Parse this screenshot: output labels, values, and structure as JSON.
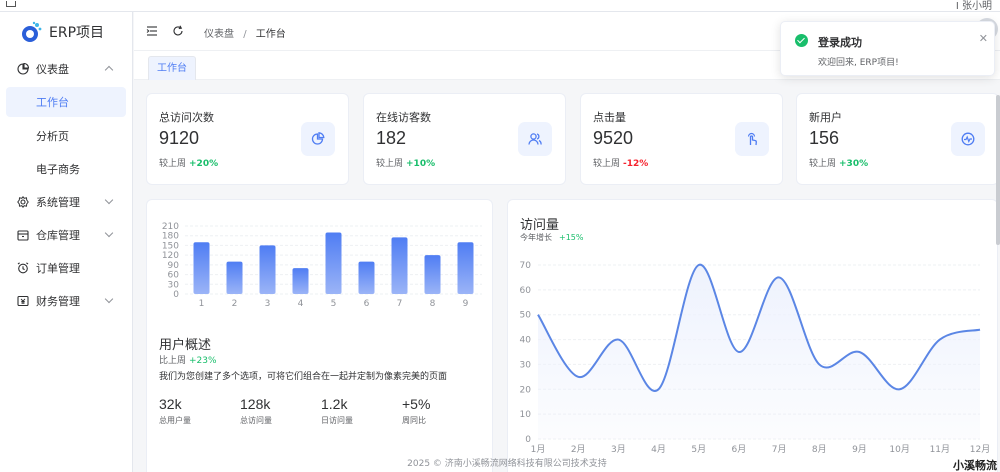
{
  "topbar": {
    "right_text": "Ⅰ 张小明"
  },
  "app": {
    "name": "ERP项目"
  },
  "sidebar": {
    "items": [
      {
        "label": "仪表盘",
        "icon": "dashboard-icon",
        "expanded": true,
        "children": [
          {
            "label": "工作台",
            "active": true
          },
          {
            "label": "分析页"
          },
          {
            "label": "电子商务"
          }
        ]
      },
      {
        "label": "系统管理",
        "icon": "gear-icon"
      },
      {
        "label": "仓库管理",
        "icon": "warehouse-icon"
      },
      {
        "label": "订单管理",
        "icon": "alarm-icon"
      },
      {
        "label": "财务管理",
        "icon": "finance-icon"
      }
    ]
  },
  "header": {
    "breadcrumb": [
      "仪表盘",
      "/",
      "工作台"
    ]
  },
  "tabs": [
    {
      "label": "工作台",
      "active": true
    }
  ],
  "stats": [
    {
      "title": "总访问次数",
      "value": "9120",
      "compare_label": "较上周",
      "change": "+20%",
      "trend": "up",
      "icon": "pie-chart-icon"
    },
    {
      "title": "在线访客数",
      "value": "182",
      "compare_label": "较上周",
      "change": "+10%",
      "trend": "up",
      "icon": "users-icon"
    },
    {
      "title": "点击量",
      "value": "9520",
      "compare_label": "较上周",
      "change": "-12%",
      "trend": "down",
      "icon": "pointer-click-icon"
    },
    {
      "title": "新用户",
      "value": "156",
      "compare_label": "较上周",
      "change": "+30%",
      "trend": "up",
      "icon": "activity-icon"
    }
  ],
  "overview": {
    "title": "用户概述",
    "compare_label": "比上周",
    "change": "+23%",
    "description": "我们为您创建了多个选项，可将它们组合在一起并定制为像素完美的页面",
    "metrics": [
      {
        "value": "32k",
        "label": "总用户量"
      },
      {
        "value": "128k",
        "label": "总访问量"
      },
      {
        "value": "1.2k",
        "label": "日访问量"
      },
      {
        "value": "+5%",
        "label": "周同比"
      }
    ]
  },
  "visits": {
    "title": "访问量",
    "sub_label": "今年增长",
    "change": "+15%"
  },
  "chart_data": [
    {
      "type": "bar",
      "categories": [
        "1",
        "2",
        "3",
        "4",
        "5",
        "6",
        "7",
        "8",
        "9"
      ],
      "values": [
        160,
        100,
        150,
        80,
        190,
        100,
        175,
        120,
        160
      ],
      "yticks": [
        "0",
        "30",
        "60",
        "90",
        "120",
        "150",
        "180",
        "210"
      ],
      "ylim": [
        0,
        210
      ],
      "grid": true,
      "colors": [
        "#4f7df3",
        "#9bb4f7"
      ]
    },
    {
      "type": "area",
      "categories": [
        "1月",
        "2月",
        "3月",
        "4月",
        "5月",
        "6月",
        "7月",
        "8月",
        "9月",
        "10月",
        "11月",
        "12月"
      ],
      "values": [
        50,
        25,
        40,
        20,
        70,
        35,
        65,
        30,
        35,
        20,
        40,
        44
      ],
      "yticks": [
        "0",
        "10",
        "20",
        "30",
        "40",
        "50",
        "60",
        "70"
      ],
      "ylim": [
        0,
        70
      ],
      "grid": true,
      "colors": [
        "#5b86e5",
        "#eef2fd"
      ]
    }
  ],
  "notification": {
    "title": "登录成功",
    "message": "欢迎回来, ERP项目!"
  },
  "footer": {
    "text": "2025 © 济南小溪畅流网络科技有限公司技术支持"
  },
  "watermark": {
    "text": "小溪畅流"
  },
  "colors": {
    "primary": "#4f7df3",
    "up": "#19be6b",
    "down": "#f5222d",
    "active_bg": "#eef3fe"
  }
}
